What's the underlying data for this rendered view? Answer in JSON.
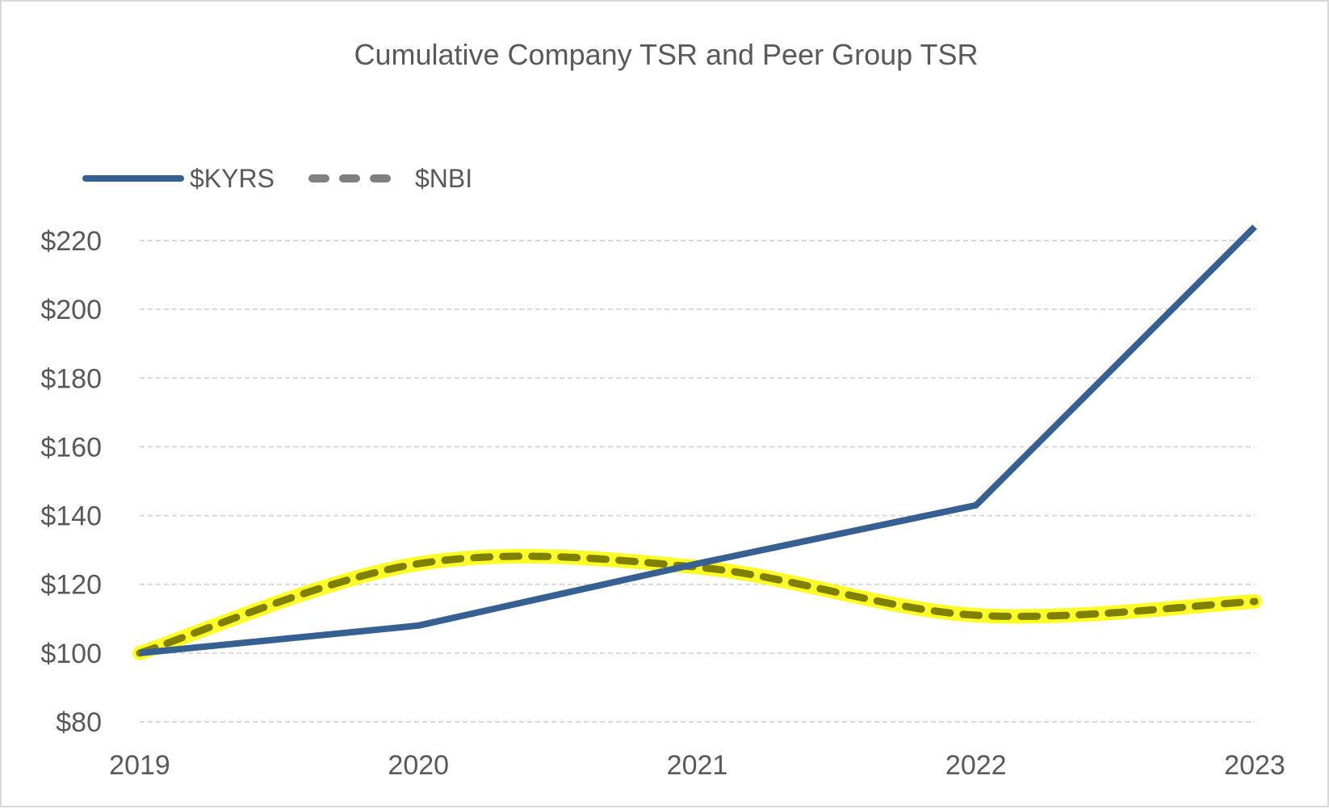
{
  "chart_data": {
    "type": "line",
    "title": "Cumulative Company TSR and Peer Group TSR",
    "xlabel": "",
    "ylabel": "",
    "categories": [
      "2019",
      "2020",
      "2021",
      "2022",
      "2023"
    ],
    "yticks": [
      "$80",
      "$100",
      "$120",
      "$140",
      "$160",
      "$180",
      "$200",
      "$220"
    ],
    "ytick_values": [
      80,
      100,
      120,
      140,
      160,
      180,
      200,
      220
    ],
    "ylim": [
      80,
      220
    ],
    "grid": true,
    "legend_position": "top-left",
    "series": [
      {
        "name": "$KYRS",
        "values": [
          100,
          108,
          126,
          143,
          224
        ],
        "color": "#366092",
        "style": "solid"
      },
      {
        "name": "$NBI",
        "values": [
          100,
          126,
          125,
          111,
          115
        ],
        "color": "#7f7f00",
        "legend_color": "#808080",
        "highlight_color": "#ffff00",
        "style": "dashed",
        "smooth": true
      }
    ]
  }
}
